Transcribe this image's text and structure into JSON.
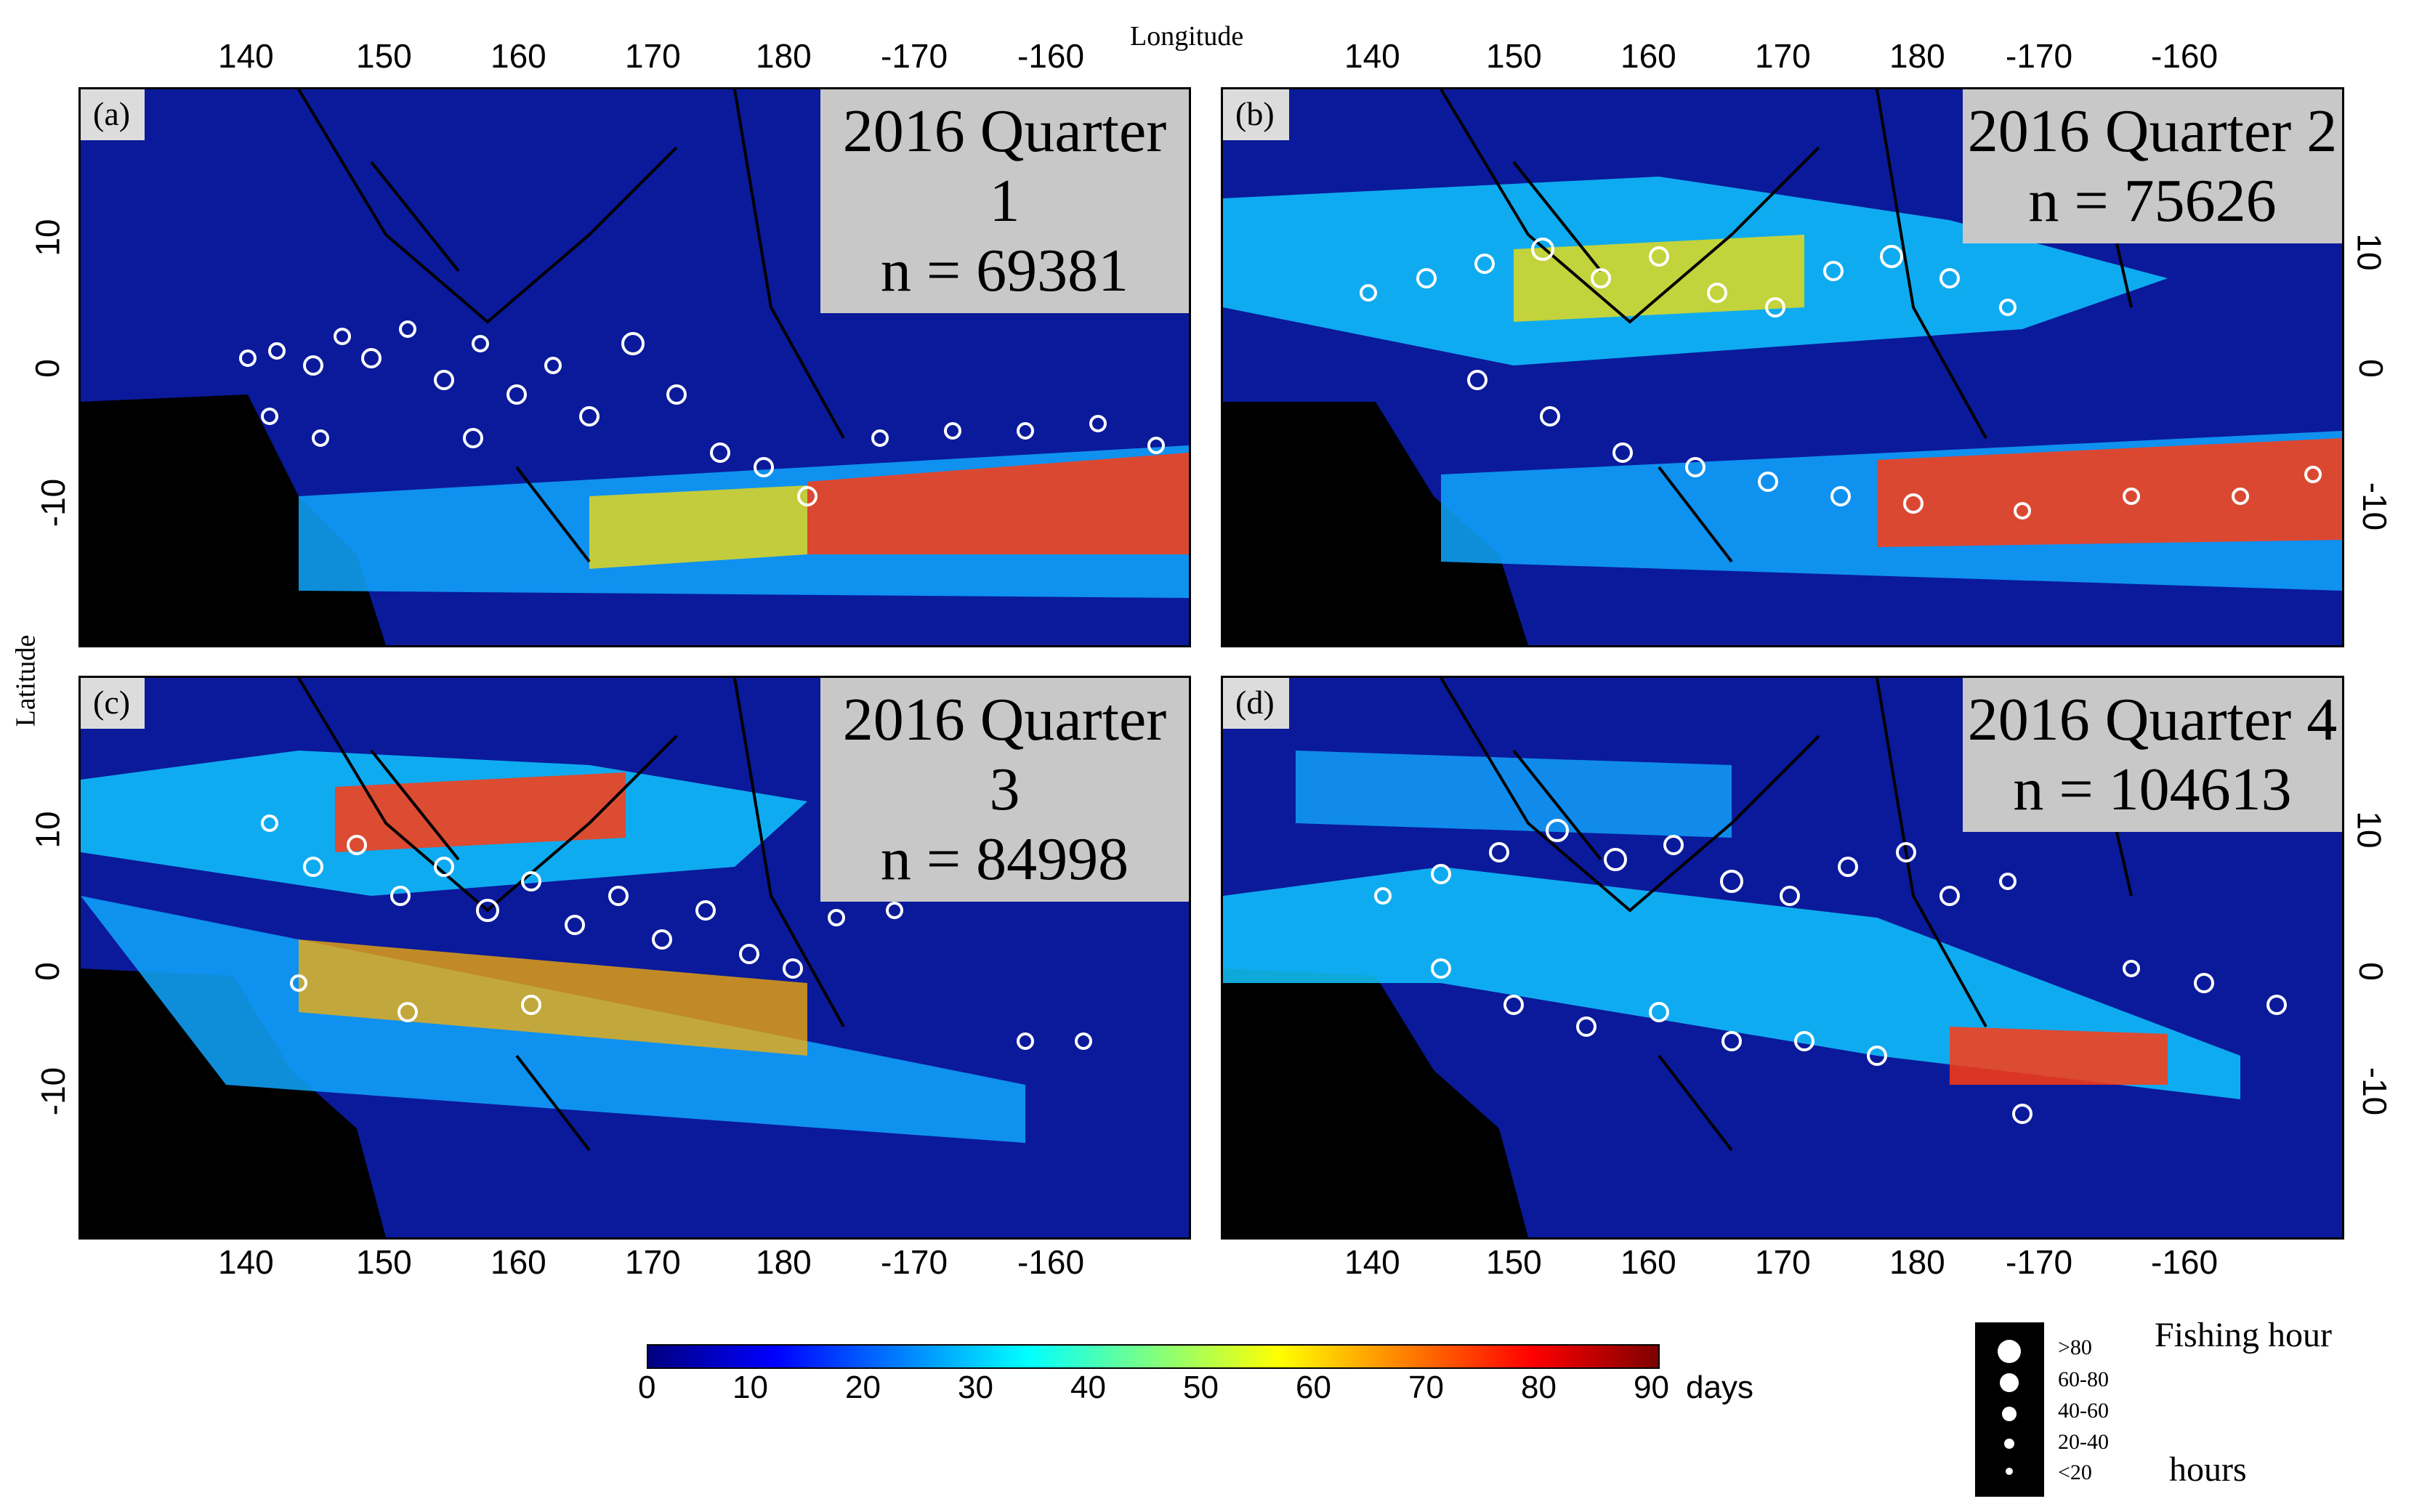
{
  "figure": {
    "x_axis_title": "Longitude",
    "y_axis_title": "Latitude",
    "lon_ticks": [
      "140",
      "150",
      "160",
      "170",
      "180",
      "-170",
      "-160"
    ],
    "lat_ticks": [
      "10",
      "0",
      "-10"
    ]
  },
  "panels": [
    {
      "tag": "(a)",
      "quarter": "2016 Quarter 1",
      "n": "n = 69381"
    },
    {
      "tag": "(b)",
      "quarter": "2016 Quarter 2",
      "n": "n = 75626"
    },
    {
      "tag": "(c)",
      "quarter": "2016 Quarter 3",
      "n": "n = 84998"
    },
    {
      "tag": "(d)",
      "quarter": "2016 Quarter 4",
      "n": "n = 104613"
    }
  ],
  "colorbar": {
    "ticks": [
      "0",
      "10",
      "20",
      "30",
      "40",
      "50",
      "60",
      "70",
      "80",
      "90"
    ],
    "unit": "days",
    "colors": [
      "#00007f",
      "#0000ff",
      "#007fff",
      "#00ffff",
      "#7fff7f",
      "#ffff00",
      "#ff7f00",
      "#ff0000",
      "#7f0000"
    ]
  },
  "legend": {
    "title": "Fishing hour",
    "unit": "hours",
    "classes": [
      ">80",
      "60-80",
      "40-60",
      "20-40",
      "<20"
    ]
  },
  "colors": {
    "ocean": "#0a1a9a",
    "land": "#000000",
    "markers": "#ffffff"
  }
}
